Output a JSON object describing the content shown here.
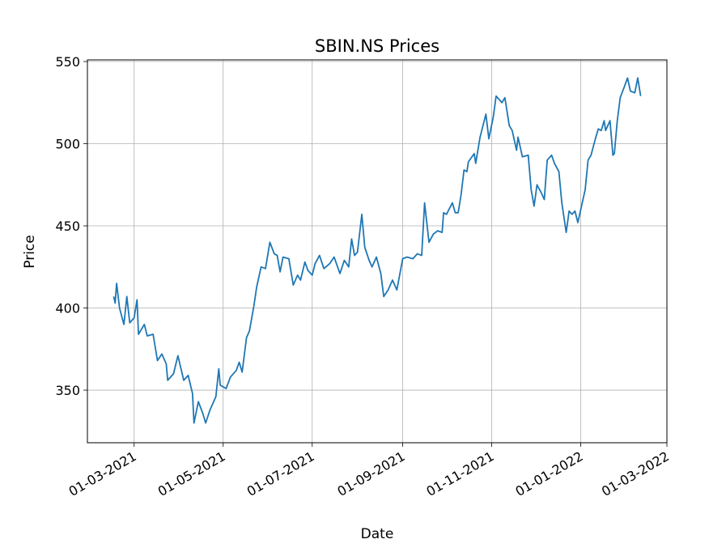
{
  "chart_data": {
    "type": "line",
    "title": "SBIN.NS Prices",
    "xlabel": "Date",
    "ylabel": "Price",
    "color": "#1f77b4",
    "grid": true,
    "xlim": [
      "2021-01-28",
      "2022-03-01"
    ],
    "ylim": [
      318,
      551
    ],
    "yticks": [
      350,
      400,
      450,
      500,
      550
    ],
    "xticks": [
      {
        "value": "2021-03-01",
        "label": "01-03-2021"
      },
      {
        "value": "2021-05-01",
        "label": "01-05-2021"
      },
      {
        "value": "2021-07-01",
        "label": "01-07-2021"
      },
      {
        "value": "2021-09-01",
        "label": "01-09-2021"
      },
      {
        "value": "2021-11-01",
        "label": "01-11-2021"
      },
      {
        "value": "2022-01-01",
        "label": "01-01-2022"
      },
      {
        "value": "2022-03-01",
        "label": "01-03-2022"
      }
    ],
    "x": [
      "2021-02-15",
      "2021-02-16",
      "2021-02-17",
      "2021-02-19",
      "2021-02-22",
      "2021-02-24",
      "2021-02-26",
      "2021-03-01",
      "2021-03-03",
      "2021-03-04",
      "2021-03-08",
      "2021-03-10",
      "2021-03-14",
      "2021-03-17",
      "2021-03-20",
      "2021-03-23",
      "2021-03-24",
      "2021-03-28",
      "2021-03-31",
      "2021-04-04",
      "2021-04-07",
      "2021-04-10",
      "2021-04-11",
      "2021-04-14",
      "2021-04-17",
      "2021-04-19",
      "2021-04-22",
      "2021-04-26",
      "2021-04-28",
      "2021-04-29",
      "2021-05-03",
      "2021-05-06",
      "2021-05-10",
      "2021-05-12",
      "2021-05-14",
      "2021-05-17",
      "2021-05-19",
      "2021-05-22",
      "2021-05-24",
      "2021-05-27",
      "2021-05-30",
      "2021-06-02",
      "2021-06-05",
      "2021-06-07",
      "2021-06-09",
      "2021-06-11",
      "2021-06-15",
      "2021-06-18",
      "2021-06-21",
      "2021-06-23",
      "2021-06-26",
      "2021-06-28",
      "2021-07-01",
      "2021-07-03",
      "2021-07-06",
      "2021-07-09",
      "2021-07-13",
      "2021-07-16",
      "2021-07-20",
      "2021-07-23",
      "2021-07-26",
      "2021-07-28",
      "2021-07-30",
      "2021-08-01",
      "2021-08-04",
      "2021-08-06",
      "2021-08-09",
      "2021-08-11",
      "2021-08-14",
      "2021-08-17",
      "2021-08-19",
      "2021-08-22",
      "2021-08-25",
      "2021-08-28",
      "2021-09-01",
      "2021-09-04",
      "2021-09-08",
      "2021-09-11",
      "2021-09-14",
      "2021-09-16",
      "2021-09-19",
      "2021-09-22",
      "2021-09-25",
      "2021-09-28",
      "2021-09-29",
      "2021-10-01",
      "2021-10-05",
      "2021-10-07",
      "2021-10-09",
      "2021-10-11",
      "2021-10-13",
      "2021-10-15",
      "2021-10-16",
      "2021-10-20",
      "2021-10-21",
      "2021-10-24",
      "2021-10-26",
      "2021-10-28",
      "2021-10-30",
      "2021-11-02",
      "2021-11-04",
      "2021-11-06",
      "2021-11-08",
      "2021-11-10",
      "2021-11-13",
      "2021-11-15",
      "2021-11-18",
      "2021-11-19",
      "2021-11-22",
      "2021-11-26",
      "2021-11-28",
      "2021-11-30",
      "2021-12-02",
      "2021-12-05",
      "2021-12-07",
      "2021-12-09",
      "2021-12-12",
      "2021-12-14",
      "2021-12-17",
      "2021-12-19",
      "2021-12-22",
      "2021-12-24",
      "2021-12-26",
      "2021-12-28",
      "2021-12-30",
      "2022-01-02",
      "2022-01-04",
      "2022-01-06",
      "2022-01-08",
      "2022-01-11",
      "2022-01-13",
      "2022-01-15",
      "2022-01-17",
      "2022-01-18",
      "2022-01-21",
      "2022-01-23",
      "2022-01-24",
      "2022-01-26",
      "2022-01-28",
      "2022-01-31",
      "2022-02-02",
      "2022-02-04",
      "2022-02-07",
      "2022-02-09",
      "2022-02-11"
    ],
    "values": [
      407,
      403,
      415,
      400,
      390,
      407,
      391,
      394,
      405,
      384,
      390,
      383,
      384,
      368,
      372,
      366,
      356,
      360,
      371,
      356,
      359,
      348,
      330,
      343,
      336,
      330,
      338,
      346,
      363,
      353,
      351,
      358,
      362,
      367,
      361,
      382,
      386,
      401,
      413,
      425,
      424,
      440,
      433,
      432,
      422,
      431,
      430,
      414,
      420,
      417,
      428,
      423,
      420,
      427,
      432,
      424,
      427,
      431,
      421,
      429,
      425,
      442,
      432,
      434,
      457,
      437,
      429,
      425,
      431,
      421,
      407,
      411,
      417,
      411,
      430,
      431,
      430,
      433,
      432,
      464,
      440,
      445,
      447,
      446,
      458,
      457,
      464,
      458,
      458,
      469,
      484,
      483,
      489,
      494,
      488,
      504,
      511,
      518,
      503,
      516,
      529,
      527,
      525,
      528,
      511,
      508,
      496,
      504,
      492,
      493,
      472,
      462,
      475,
      470,
      466,
      490,
      493,
      488,
      483,
      464,
      446,
      459,
      457,
      459,
      452,
      464,
      472,
      490,
      493,
      503,
      509,
      508,
      514,
      508,
      514,
      493,
      494,
      514,
      528,
      535,
      540,
      532,
      531,
      540,
      529
    ]
  }
}
